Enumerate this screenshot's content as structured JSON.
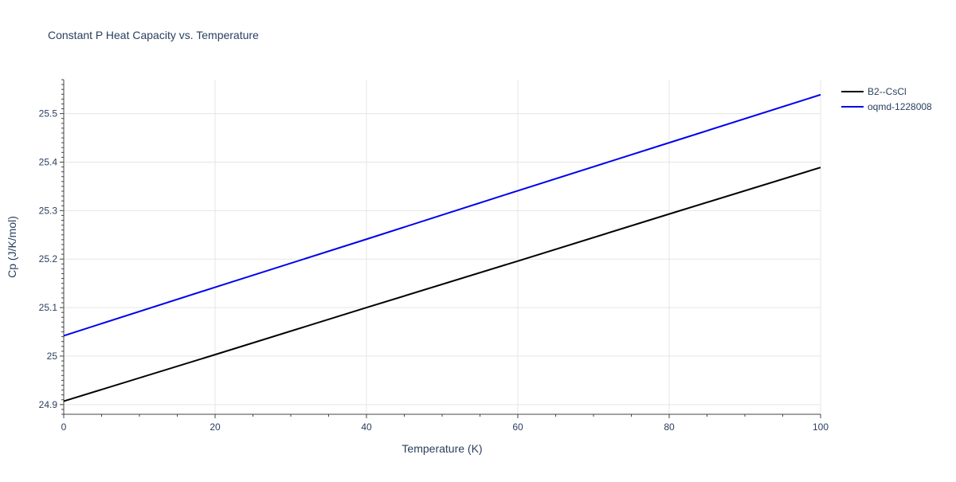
{
  "chart_data": {
    "type": "line",
    "title": "Constant P Heat Capacity vs. Temperature",
    "xlabel": "Temperature (K)",
    "ylabel": "Cp (J/K/mol)",
    "xlim": [
      0,
      100
    ],
    "ylim": [
      24.88,
      25.57
    ],
    "xticks": [
      0,
      20,
      40,
      60,
      80,
      100
    ],
    "yticks": [
      24.9,
      25,
      25.1,
      25.2,
      25.3,
      25.4,
      25.5
    ],
    "ytick_labels": [
      "24.9",
      "25",
      "25.1",
      "25.2",
      "25.3",
      "25.4",
      "25.5"
    ],
    "grid": true,
    "legend_position": "top-right",
    "series": [
      {
        "name": "B2--CsCl",
        "color": "#000000",
        "x": [
          0,
          20,
          40,
          60,
          80,
          100
        ],
        "y": [
          24.907,
          25.003,
          25.1,
          25.196,
          25.293,
          25.389
        ]
      },
      {
        "name": "oqmd-1228008",
        "color": "#0000ee",
        "x": [
          0,
          20,
          40,
          60,
          80,
          100
        ],
        "y": [
          25.042,
          25.142,
          25.241,
          25.341,
          25.44,
          25.539
        ]
      }
    ]
  }
}
